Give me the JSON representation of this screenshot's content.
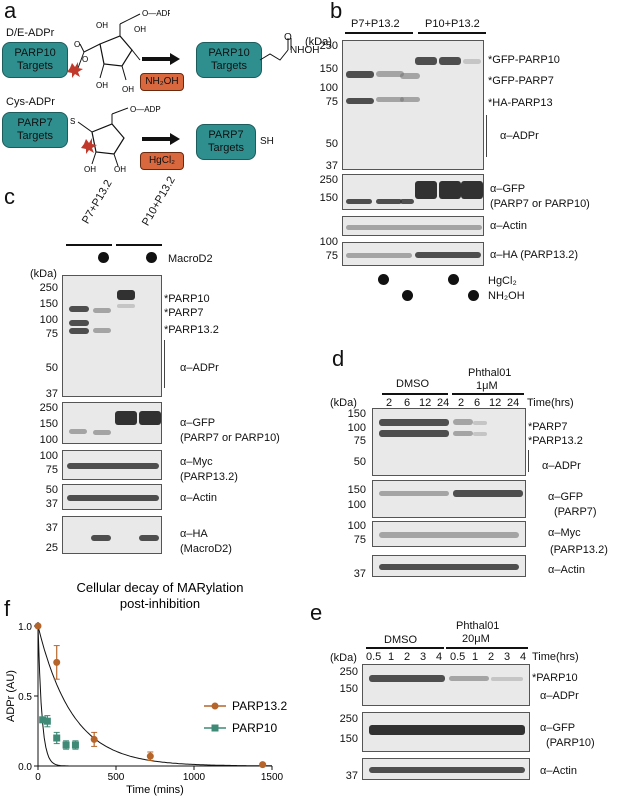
{
  "panels": {
    "a": {
      "letter": "a",
      "de_title": "D/E-ADPr",
      "cys_title": "Cys-ADPr",
      "parp10_targets": "PARP10 Targets",
      "parp7_targets": "PARP7 Targets",
      "adp": "ADP",
      "oh": "OH",
      "reagent1": "NH₂OH",
      "reagent2": "HgCl₂",
      "nhoh": "NHOH",
      "sh": "SH",
      "s": "S"
    },
    "b": {
      "letter": "b",
      "kda": "(kDa)",
      "group1": "P7+P13.2",
      "group2": "P10+P13.2",
      "mw_top": [
        "250",
        "150",
        "100",
        "75",
        "50",
        "37"
      ],
      "labels": [
        "*GFP-PARP10",
        "*GFP-PARP7",
        "*HA-PARP13",
        "α–ADPr"
      ],
      "gfp_mw": [
        "250",
        "150"
      ],
      "gfp_label": "α–GFP",
      "gfp_sub": "(PARP7 or PARP10)",
      "actin_label": "α–Actin",
      "ha_mw": [
        "100",
        "75"
      ],
      "ha_label": "α–HA (PARP13.2)",
      "treat1": "HgCl₂",
      "treat2": "NH₂OH"
    },
    "c": {
      "letter": "c",
      "group1": "P7+P13.2",
      "group2": "P10+P13.2",
      "macro": "MacroD2",
      "kda": "(kDa)",
      "mw_top": [
        "250",
        "150",
        "100",
        "75",
        "50",
        "37"
      ],
      "labels": [
        "*PARP10",
        "*PARP7",
        "*PARP13.2",
        "α–ADPr"
      ],
      "gfp_mw": [
        "250",
        "150",
        "100"
      ],
      "gfp_label": "α–GFP",
      "gfp_sub": "(PARP7 or PARP10)",
      "myc_mw": [
        "100",
        "75"
      ],
      "myc_label": "α–Myc",
      "myc_sub": "(PARP13.2)",
      "actin_mw": [
        "50",
        "37"
      ],
      "actin_label": "α–Actin",
      "ha_mw": [
        "37",
        "25"
      ],
      "ha_label": "α–HA",
      "ha_sub": "(MacroD2)"
    },
    "d": {
      "letter": "d",
      "group1": "DMSO",
      "group2": "Phthal01",
      "group2_sub": "1μM",
      "time": "Time(hrs)",
      "kda": "(kDa)",
      "times": [
        "2",
        "6",
        "12",
        "24",
        "2",
        "6",
        "12",
        "24"
      ],
      "mw_top": [
        "150",
        "100",
        "75",
        "50"
      ],
      "labels": [
        "*PARP7",
        "*PARP13.2",
        "α–ADPr"
      ],
      "gfp_mw": [
        "150",
        "100"
      ],
      "gfp_label": "α–GFP",
      "gfp_sub": "(PARP7)",
      "myc_mw": [
        "100",
        "75"
      ],
      "myc_label": "α–Myc",
      "myc_sub": "(PARP13.2)",
      "actin_mw": [
        "37"
      ],
      "actin_label": "α–Actin"
    },
    "e": {
      "letter": "e",
      "group1": "DMSO",
      "group2": "Phthal01",
      "group2_sub": "20μM",
      "time": "Time(hrs)",
      "kda": "(kDa)",
      "times": [
        "0.5",
        "1",
        "2",
        "3",
        "4",
        "0.5",
        "1",
        "2",
        "3",
        "4"
      ],
      "mw_top": [
        "250",
        "150"
      ],
      "labels": [
        "*PARP10",
        "α–ADPr"
      ],
      "gfp_mw": [
        "250",
        "150"
      ],
      "gfp_label": "α–GFP",
      "gfp_sub": "(PARP10)",
      "actin_mw": [
        "37"
      ],
      "actin_label": "α–Actin"
    },
    "f": {
      "letter": "f"
    }
  },
  "chart_data": {
    "type": "scatter",
    "title": "Cellular decay of MARylation post-inhibition",
    "xlabel": "Time (mins)",
    "ylabel": "ADPr (AU)",
    "xlim": [
      0,
      1500
    ],
    "ylim": [
      0,
      1.0
    ],
    "xticks": [
      "0",
      "500",
      "1000",
      "1500"
    ],
    "yticks": [
      "0.0",
      "0.5",
      "1.0"
    ],
    "legend_position": "right",
    "colors": {
      "PARP13.2": "#b5652a",
      "PARP10": "#3f8a77"
    },
    "series": [
      {
        "name": "PARP13.2",
        "marker": "circle",
        "x": [
          0,
          120,
          360,
          720,
          1440
        ],
        "y": [
          1.0,
          0.74,
          0.19,
          0.07,
          0.01
        ],
        "err": [
          0.0,
          0.12,
          0.05,
          0.03,
          0.0
        ]
      },
      {
        "name": "PARP10",
        "marker": "square",
        "x": [
          30,
          60,
          120,
          180,
          240
        ],
        "y": [
          0.33,
          0.32,
          0.2,
          0.15,
          0.15
        ],
        "err": [
          0.02,
          0.04,
          0.04,
          0.03,
          0.03
        ]
      }
    ]
  }
}
